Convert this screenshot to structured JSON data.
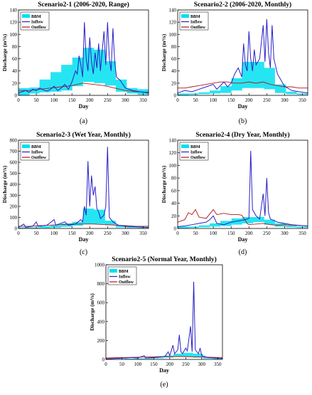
{
  "colors": {
    "bbm": "#00e0f0",
    "inflow": "#2a20c8",
    "outflow": "#b01818",
    "axis": "#000000"
  },
  "chart_data": [
    {
      "panel": "(a)",
      "title": "Scenario2-1  (2006-2020,  Range)",
      "type": "area",
      "xlabel": "Day",
      "ylabel": "Discharge (m³/s)",
      "xlim": [
        0,
        365
      ],
      "ylim": [
        0,
        140
      ],
      "xticks": [
        0,
        50,
        100,
        150,
        200,
        250,
        300,
        350
      ],
      "yticks": [
        0,
        20,
        40,
        60,
        80,
        100,
        120,
        140
      ],
      "legend": [
        "BBM",
        "Inflow",
        "Outflow"
      ],
      "legend_position": "top-left",
      "bbm": [
        [
          0,
          0,
          12
        ],
        [
          31,
          3,
          13
        ],
        [
          59,
          5,
          26
        ],
        [
          90,
          6,
          38
        ],
        [
          120,
          8,
          50
        ],
        [
          151,
          15,
          62
        ],
        [
          181,
          22,
          78
        ],
        [
          212,
          20,
          75
        ],
        [
          243,
          16,
          56
        ],
        [
          273,
          6,
          26
        ],
        [
          304,
          3,
          12
        ],
        [
          334,
          1,
          10
        ],
        [
          365,
          1,
          10
        ]
      ],
      "inflow": [
        [
          0,
          4
        ],
        [
          10,
          6
        ],
        [
          20,
          8
        ],
        [
          30,
          5
        ],
        [
          40,
          10
        ],
        [
          50,
          8
        ],
        [
          60,
          12
        ],
        [
          70,
          9
        ],
        [
          80,
          7
        ],
        [
          90,
          10
        ],
        [
          100,
          15
        ],
        [
          110,
          8
        ],
        [
          120,
          12
        ],
        [
          130,
          18
        ],
        [
          140,
          10
        ],
        [
          150,
          22
        ],
        [
          160,
          40
        ],
        [
          165,
          35
        ],
        [
          170,
          65
        ],
        [
          175,
          50
        ],
        [
          180,
          30
        ],
        [
          185,
          120
        ],
        [
          190,
          60
        ],
        [
          195,
          40
        ],
        [
          200,
          95
        ],
        [
          205,
          55
        ],
        [
          210,
          35
        ],
        [
          215,
          70
        ],
        [
          220,
          45
        ],
        [
          225,
          85
        ],
        [
          230,
          40
        ],
        [
          240,
          105
        ],
        [
          245,
          50
        ],
        [
          250,
          120
        ],
        [
          255,
          60
        ],
        [
          260,
          40
        ],
        [
          265,
          110
        ],
        [
          270,
          55
        ],
        [
          275,
          30
        ],
        [
          285,
          25
        ],
        [
          300,
          12
        ],
        [
          320,
          8
        ],
        [
          340,
          6
        ],
        [
          365,
          4
        ]
      ],
      "outflow": [
        [
          0,
          8
        ],
        [
          30,
          8
        ],
        [
          60,
          10
        ],
        [
          90,
          12
        ],
        [
          120,
          14
        ],
        [
          150,
          16
        ],
        [
          180,
          20
        ],
        [
          210,
          18
        ],
        [
          240,
          16
        ],
        [
          270,
          12
        ],
        [
          300,
          8
        ],
        [
          330,
          6
        ],
        [
          365,
          5
        ]
      ]
    },
    {
      "panel": "(b)",
      "title": "Scenario2-2  (2006-2020,  Monthly)",
      "type": "area",
      "xlabel": "Day",
      "ylabel": "Discharge (m³/s)",
      "xlim": [
        0,
        365
      ],
      "ylim": [
        0,
        140
      ],
      "xticks": [
        0,
        50,
        100,
        150,
        200,
        250,
        300,
        350
      ],
      "yticks": [
        0,
        20,
        40,
        60,
        80,
        100,
        120,
        140
      ],
      "legend": [
        "BBM",
        "Inflow",
        "Outflow"
      ],
      "legend_position": "top-left",
      "bbm": [
        [
          0,
          0,
          3
        ],
        [
          31,
          1,
          3
        ],
        [
          59,
          2,
          5
        ],
        [
          90,
          3,
          8
        ],
        [
          120,
          4,
          15
        ],
        [
          151,
          8,
          28
        ],
        [
          181,
          12,
          55
        ],
        [
          212,
          12,
          55
        ],
        [
          243,
          10,
          45
        ],
        [
          273,
          4,
          18
        ],
        [
          304,
          2,
          6
        ],
        [
          334,
          1,
          3
        ],
        [
          365,
          1,
          3
        ]
      ],
      "inflow": [
        [
          0,
          4
        ],
        [
          20,
          8
        ],
        [
          40,
          6
        ],
        [
          60,
          10
        ],
        [
          80,
          14
        ],
        [
          100,
          18
        ],
        [
          110,
          10
        ],
        [
          120,
          16
        ],
        [
          130,
          22
        ],
        [
          140,
          14
        ],
        [
          150,
          20
        ],
        [
          160,
          35
        ],
        [
          170,
          45
        ],
        [
          180,
          30
        ],
        [
          185,
          85
        ],
        [
          190,
          50
        ],
        [
          195,
          40
        ],
        [
          200,
          105
        ],
        [
          205,
          60
        ],
        [
          210,
          40
        ],
        [
          215,
          75
        ],
        [
          220,
          50
        ],
        [
          230,
          60
        ],
        [
          240,
          115
        ],
        [
          245,
          55
        ],
        [
          250,
          125
        ],
        [
          255,
          70
        ],
        [
          260,
          45
        ],
        [
          265,
          115
        ],
        [
          270,
          60
        ],
        [
          280,
          35
        ],
        [
          290,
          25
        ],
        [
          300,
          15
        ],
        [
          320,
          8
        ],
        [
          340,
          6
        ],
        [
          365,
          4
        ]
      ],
      "outflow": [
        [
          0,
          12
        ],
        [
          20,
          12
        ],
        [
          40,
          14
        ],
        [
          60,
          16
        ],
        [
          80,
          18
        ],
        [
          100,
          20
        ],
        [
          120,
          22
        ],
        [
          140,
          22
        ],
        [
          160,
          20
        ],
        [
          180,
          20
        ],
        [
          200,
          22
        ],
        [
          220,
          20
        ],
        [
          240,
          22
        ],
        [
          260,
          18
        ],
        [
          280,
          16
        ],
        [
          300,
          14
        ],
        [
          320,
          14
        ],
        [
          340,
          12
        ],
        [
          365,
          12
        ]
      ]
    },
    {
      "panel": "(c)",
      "title": "Scenario2-3  (Wet Year,  Monthly)",
      "type": "area",
      "xlabel": "Day",
      "ylabel": "Discharge (m³/s)",
      "xlim": [
        0,
        365
      ],
      "ylim": [
        0,
        800
      ],
      "xticks": [
        0,
        50,
        100,
        150,
        200,
        250,
        300,
        350
      ],
      "yticks": [
        0,
        100,
        200,
        300,
        400,
        500,
        600,
        700,
        800
      ],
      "legend": [
        "BBM",
        "Inflow",
        "Outflow"
      ],
      "legend_position": "top-left",
      "bbm": [
        [
          0,
          0,
          10
        ],
        [
          31,
          2,
          10
        ],
        [
          59,
          5,
          20
        ],
        [
          90,
          8,
          30
        ],
        [
          120,
          15,
          45
        ],
        [
          151,
          25,
          60
        ],
        [
          181,
          40,
          180
        ],
        [
          212,
          40,
          170
        ],
        [
          243,
          30,
          70
        ],
        [
          273,
          10,
          30
        ],
        [
          304,
          5,
          15
        ],
        [
          334,
          2,
          10
        ],
        [
          365,
          2,
          10
        ]
      ],
      "inflow": [
        [
          0,
          10
        ],
        [
          15,
          40
        ],
        [
          20,
          10
        ],
        [
          40,
          20
        ],
        [
          50,
          60
        ],
        [
          55,
          20
        ],
        [
          80,
          30
        ],
        [
          100,
          80
        ],
        [
          105,
          30
        ],
        [
          130,
          60
        ],
        [
          140,
          30
        ],
        [
          160,
          40
        ],
        [
          175,
          80
        ],
        [
          180,
          60
        ],
        [
          185,
          200
        ],
        [
          190,
          120
        ],
        [
          195,
          610
        ],
        [
          200,
          200
        ],
        [
          205,
          480
        ],
        [
          210,
          300
        ],
        [
          215,
          380
        ],
        [
          220,
          180
        ],
        [
          225,
          150
        ],
        [
          230,
          90
        ],
        [
          240,
          120
        ],
        [
          245,
          200
        ],
        [
          250,
          740
        ],
        [
          255,
          100
        ],
        [
          265,
          60
        ],
        [
          280,
          30
        ],
        [
          300,
          20
        ],
        [
          330,
          15
        ],
        [
          365,
          10
        ]
      ],
      "outflow": [
        [
          0,
          20
        ],
        [
          30,
          20
        ],
        [
          60,
          25
        ],
        [
          90,
          30
        ],
        [
          120,
          35
        ],
        [
          150,
          40
        ],
        [
          180,
          40
        ],
        [
          210,
          40
        ],
        [
          240,
          35
        ],
        [
          270,
          30
        ],
        [
          300,
          25
        ],
        [
          330,
          20
        ],
        [
          365,
          20
        ]
      ]
    },
    {
      "panel": "(d)",
      "title": "Scenario2-4  (Dry Year,  Monthly)",
      "type": "area",
      "xlabel": "Day",
      "ylabel": "Discharge (m³/s)",
      "xlim": [
        0,
        365
      ],
      "ylim": [
        0,
        140
      ],
      "xticks": [
        0,
        50,
        100,
        150,
        200,
        250,
        300,
        350
      ],
      "yticks": [
        0,
        20,
        40,
        60,
        80,
        100,
        120,
        140
      ],
      "legend": [
        "BBM",
        "Inflow",
        "Outflow"
      ],
      "legend_position": "top-left",
      "bbm": [
        [
          0,
          0,
          3
        ],
        [
          31,
          1,
          3
        ],
        [
          59,
          2,
          5
        ],
        [
          90,
          3,
          8
        ],
        [
          120,
          4,
          12
        ],
        [
          151,
          6,
          16
        ],
        [
          181,
          8,
          18
        ],
        [
          212,
          10,
          18
        ],
        [
          243,
          6,
          14
        ],
        [
          273,
          3,
          8
        ],
        [
          304,
          2,
          5
        ],
        [
          334,
          1,
          3
        ],
        [
          365,
          1,
          3
        ]
      ],
      "inflow": [
        [
          0,
          3
        ],
        [
          20,
          4
        ],
        [
          40,
          6
        ],
        [
          60,
          8
        ],
        [
          80,
          10
        ],
        [
          90,
          14
        ],
        [
          100,
          20
        ],
        [
          110,
          8
        ],
        [
          130,
          6
        ],
        [
          150,
          10
        ],
        [
          170,
          12
        ],
        [
          190,
          14
        ],
        [
          200,
          16
        ],
        [
          205,
          123
        ],
        [
          210,
          30
        ],
        [
          220,
          20
        ],
        [
          230,
          15
        ],
        [
          240,
          55
        ],
        [
          245,
          20
        ],
        [
          250,
          80
        ],
        [
          255,
          25
        ],
        [
          260,
          15
        ],
        [
          280,
          10
        ],
        [
          300,
          8
        ],
        [
          320,
          6
        ],
        [
          340,
          5
        ],
        [
          365,
          4
        ]
      ],
      "outflow": [
        [
          0,
          10
        ],
        [
          20,
          14
        ],
        [
          30,
          25
        ],
        [
          40,
          22
        ],
        [
          50,
          30
        ],
        [
          60,
          18
        ],
        [
          80,
          16
        ],
        [
          100,
          30
        ],
        [
          110,
          22
        ],
        [
          130,
          24
        ],
        [
          150,
          22
        ],
        [
          170,
          22
        ],
        [
          180,
          21
        ],
        [
          195,
          8
        ],
        [
          200,
          6
        ],
        [
          240,
          8
        ],
        [
          260,
          6
        ],
        [
          280,
          5
        ],
        [
          300,
          6
        ],
        [
          330,
          5
        ],
        [
          365,
          4
        ]
      ]
    },
    {
      "panel": "(e)",
      "title": "Scenario2-5  (Normal Year,  Monthly)",
      "type": "area",
      "xlabel": "Day",
      "ylabel": "Discharge (m³/s)",
      "xlim": [
        0,
        365
      ],
      "ylim": [
        0,
        1000
      ],
      "xticks": [
        0,
        50,
        100,
        150,
        200,
        250,
        300,
        350
      ],
      "yticks": [
        0,
        200,
        400,
        600,
        800,
        1000
      ],
      "legend": [
        "BBM",
        "Inflow",
        "Outflow"
      ],
      "legend_position": "top-left",
      "bbm": [
        [
          0,
          0,
          5
        ],
        [
          31,
          1,
          5
        ],
        [
          59,
          2,
          8
        ],
        [
          90,
          4,
          10
        ],
        [
          120,
          6,
          15
        ],
        [
          151,
          10,
          20
        ],
        [
          181,
          20,
          40
        ],
        [
          212,
          30,
          60
        ],
        [
          243,
          30,
          70
        ],
        [
          273,
          20,
          60
        ],
        [
          304,
          8,
          20
        ],
        [
          334,
          3,
          10
        ],
        [
          365,
          2,
          8
        ]
      ],
      "inflow": [
        [
          0,
          5
        ],
        [
          30,
          10
        ],
        [
          60,
          15
        ],
        [
          80,
          20
        ],
        [
          100,
          15
        ],
        [
          120,
          40
        ],
        [
          125,
          15
        ],
        [
          150,
          20
        ],
        [
          170,
          25
        ],
        [
          185,
          30
        ],
        [
          195,
          80
        ],
        [
          200,
          40
        ],
        [
          210,
          150
        ],
        [
          215,
          60
        ],
        [
          225,
          100
        ],
        [
          230,
          260
        ],
        [
          235,
          80
        ],
        [
          240,
          60
        ],
        [
          250,
          120
        ],
        [
          255,
          90
        ],
        [
          265,
          350
        ],
        [
          270,
          80
        ],
        [
          275,
          820
        ],
        [
          280,
          100
        ],
        [
          290,
          60
        ],
        [
          295,
          120
        ],
        [
          300,
          40
        ],
        [
          320,
          20
        ],
        [
          340,
          15
        ],
        [
          365,
          10
        ]
      ],
      "outflow": [
        [
          0,
          15
        ],
        [
          60,
          20
        ],
        [
          120,
          25
        ],
        [
          180,
          30
        ],
        [
          240,
          30
        ],
        [
          300,
          25
        ],
        [
          365,
          20
        ]
      ]
    }
  ]
}
